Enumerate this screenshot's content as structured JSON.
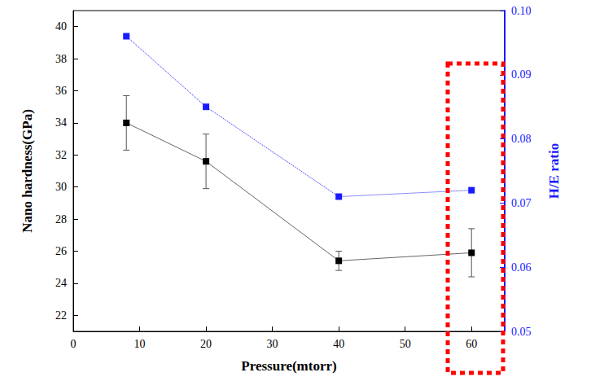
{
  "chart_data": {
    "type": "line",
    "x_label": "Pressure(mtorr)",
    "y_label": "Nano hardness(GPa)",
    "y2_label": "H/E ratio",
    "xlim": [
      0,
      65
    ],
    "xticks": [
      0,
      10,
      20,
      30,
      40,
      50,
      60
    ],
    "ylim": [
      21,
      41
    ],
    "yticks": [
      22,
      24,
      26,
      28,
      30,
      32,
      34,
      36,
      38,
      40
    ],
    "y2lim": [
      0.05,
      0.1
    ],
    "y2ticks": [
      0.05,
      0.06,
      0.07,
      0.08,
      0.09,
      {
        "value": 0.1,
        "label": "0.10"
      }
    ],
    "grid": false,
    "series": [
      {
        "name": "Nano hardness",
        "color": "#000000",
        "marker": "square",
        "line_style": "solid",
        "x": [
          8,
          20,
          40,
          60
        ],
        "values": [
          34.0,
          31.6,
          25.4,
          25.9
        ],
        "errors": [
          1.7,
          1.7,
          0.6,
          1.5
        ]
      },
      {
        "name": "H/E ratio",
        "axis": "y2",
        "color": "#1a1aff",
        "marker": "square",
        "line_style": "dotted",
        "x": [
          8,
          20,
          40,
          60
        ],
        "values": [
          0.096,
          0.085,
          0.071,
          0.072
        ]
      }
    ]
  }
}
